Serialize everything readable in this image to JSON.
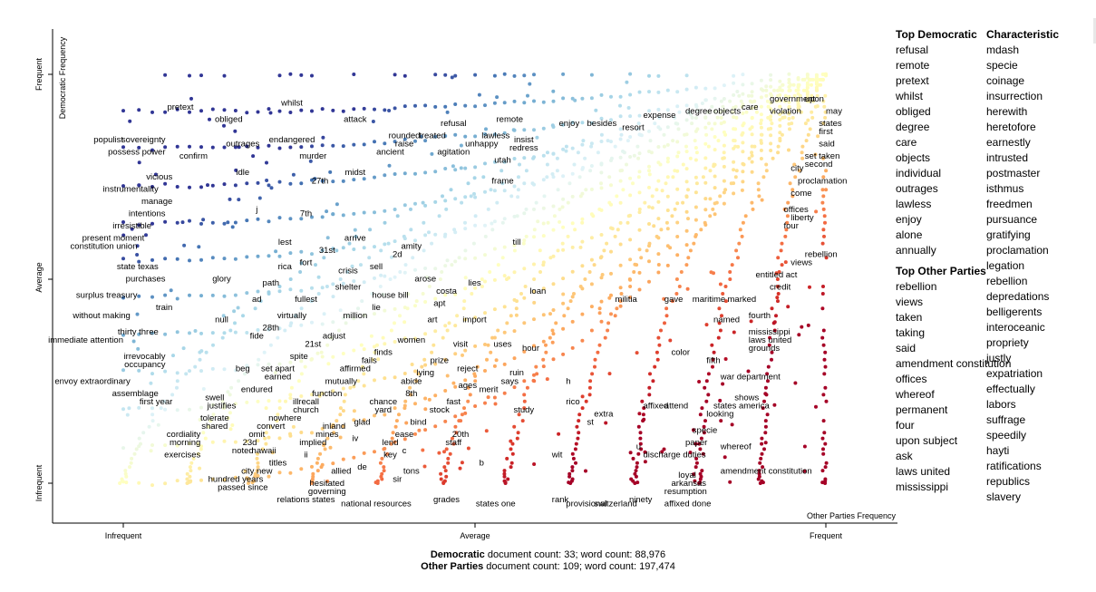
{
  "chart_data": {
    "type": "scatter",
    "title": "",
    "xlabel": "Other Parties Frequency",
    "ylabel": "Democratic Frequency",
    "x_ticks": [
      "Infrequent",
      "Average",
      "Frequent"
    ],
    "y_ticks": [
      "Infrequent",
      "Average",
      "Frequent"
    ],
    "xlim": [
      0,
      1
    ],
    "ylim": [
      0,
      1
    ],
    "color_scale": "diverging red-yellow-blue (blue = Democratic-characteristic, red = Other-Parties-characteristic)",
    "colors": {
      "democratic": "#2e4aa0",
      "neutral": "#fbf4ad",
      "other": "#b2182b"
    },
    "labels": [
      {
        "text": "pretext",
        "x": 0.1,
        "y": 0.92
      },
      {
        "text": "obliged",
        "x": 0.15,
        "y": 0.89
      },
      {
        "text": "whilst",
        "x": 0.24,
        "y": 0.93
      },
      {
        "text": "populist",
        "x": 0,
        "y": 0.84
      },
      {
        "text": "sovereignty",
        "x": 0.06,
        "y": 0.84
      },
      {
        "text": "outrages",
        "x": 0.17,
        "y": 0.83
      },
      {
        "text": "endangered",
        "x": 0.24,
        "y": 0.84
      },
      {
        "text": "attack",
        "x": 0.33,
        "y": 0.89
      },
      {
        "text": "possess power",
        "x": 0.06,
        "y": 0.81
      },
      {
        "text": "confirm",
        "x": 0.12,
        "y": 0.8
      },
      {
        "text": "murder",
        "x": 0.27,
        "y": 0.8
      },
      {
        "text": "ancient",
        "x": 0.38,
        "y": 0.81
      },
      {
        "text": "idle",
        "x": 0.17,
        "y": 0.76
      },
      {
        "text": "midst",
        "x": 0.33,
        "y": 0.76
      },
      {
        "text": "vicious",
        "x": 0.07,
        "y": 0.75
      },
      {
        "text": "27th",
        "x": 0.28,
        "y": 0.74
      },
      {
        "text": "instrumentality",
        "x": 0.05,
        "y": 0.72
      },
      {
        "text": "manage",
        "x": 0.07,
        "y": 0.69
      },
      {
        "text": "j",
        "x": 0.19,
        "y": 0.67
      },
      {
        "text": "7th",
        "x": 0.26,
        "y": 0.66
      },
      {
        "text": "intentions",
        "x": 0.06,
        "y": 0.66
      },
      {
        "text": "irresistible",
        "x": 0.04,
        "y": 0.63
      },
      {
        "text": "present moment",
        "x": 0.03,
        "y": 0.6
      },
      {
        "text": "constitution union",
        "x": 0.02,
        "y": 0.58
      },
      {
        "text": "lest",
        "x": 0.23,
        "y": 0.59
      },
      {
        "text": "31st",
        "x": 0.29,
        "y": 0.57
      },
      {
        "text": "arrive",
        "x": 0.33,
        "y": 0.6
      },
      {
        "text": "amity",
        "x": 0.41,
        "y": 0.58
      },
      {
        "text": "2d",
        "x": 0.39,
        "y": 0.56
      },
      {
        "text": "state texas",
        "x": 0.05,
        "y": 0.53
      },
      {
        "text": "rica",
        "x": 0.23,
        "y": 0.53
      },
      {
        "text": "fort",
        "x": 0.26,
        "y": 0.54
      },
      {
        "text": "crisis",
        "x": 0.32,
        "y": 0.52
      },
      {
        "text": "sell",
        "x": 0.36,
        "y": 0.53
      },
      {
        "text": "purchases",
        "x": 0.06,
        "y": 0.5
      },
      {
        "text": "glory",
        "x": 0.14,
        "y": 0.5
      },
      {
        "text": "path",
        "x": 0.21,
        "y": 0.49
      },
      {
        "text": "shelter",
        "x": 0.32,
        "y": 0.48
      },
      {
        "text": "arose",
        "x": 0.43,
        "y": 0.5
      },
      {
        "text": "lies",
        "x": 0.5,
        "y": 0.49
      },
      {
        "text": "loan",
        "x": 0.59,
        "y": 0.47
      },
      {
        "text": "surplus treasury",
        "x": 0.02,
        "y": 0.46
      },
      {
        "text": "ad",
        "x": 0.19,
        "y": 0.45
      },
      {
        "text": "fullest",
        "x": 0.26,
        "y": 0.45
      },
      {
        "text": "house bill",
        "x": 0.38,
        "y": 0.46
      },
      {
        "text": "costa",
        "x": 0.46,
        "y": 0.47
      },
      {
        "text": "apt",
        "x": 0.45,
        "y": 0.44
      },
      {
        "text": "train",
        "x": 0.07,
        "y": 0.43
      },
      {
        "text": "virtually",
        "x": 0.24,
        "y": 0.41
      },
      {
        "text": "lie",
        "x": 0.36,
        "y": 0.43
      },
      {
        "text": "million",
        "x": 0.33,
        "y": 0.41
      },
      {
        "text": "art",
        "x": 0.44,
        "y": 0.4
      },
      {
        "text": "import",
        "x": 0.5,
        "y": 0.4
      },
      {
        "text": "without making",
        "x": 0.01,
        "y": 0.41
      },
      {
        "text": "null",
        "x": 0.14,
        "y": 0.4
      },
      {
        "text": "28th",
        "x": 0.21,
        "y": 0.38
      },
      {
        "text": "fide",
        "x": 0.19,
        "y": 0.36
      },
      {
        "text": "adjust",
        "x": 0.3,
        "y": 0.36
      },
      {
        "text": "women",
        "x": 0.41,
        "y": 0.35
      },
      {
        "text": "visit",
        "x": 0.48,
        "y": 0.34
      },
      {
        "text": "uses",
        "x": 0.54,
        "y": 0.34
      },
      {
        "text": "hour",
        "x": 0.58,
        "y": 0.33
      },
      {
        "text": "thirty three",
        "x": 0.05,
        "y": 0.37
      },
      {
        "text": "immediate attention",
        "x": 0,
        "y": 0.35
      },
      {
        "text": "21st",
        "x": 0.27,
        "y": 0.34
      },
      {
        "text": "finds",
        "x": 0.37,
        "y": 0.32
      },
      {
        "text": "irrevocably",
        "x": 0.06,
        "y": 0.31
      },
      {
        "text": "spite",
        "x": 0.25,
        "y": 0.31
      },
      {
        "text": "fails",
        "x": 0.35,
        "y": 0.3
      },
      {
        "text": "prize",
        "x": 0.45,
        "y": 0.3
      },
      {
        "text": "beg",
        "x": 0.17,
        "y": 0.28
      },
      {
        "text": "occupancy",
        "x": 0.06,
        "y": 0.29
      },
      {
        "text": "set apart",
        "x": 0.22,
        "y": 0.28
      },
      {
        "text": "affirmed",
        "x": 0.33,
        "y": 0.28
      },
      {
        "text": "lying",
        "x": 0.43,
        "y": 0.27
      },
      {
        "text": "reject",
        "x": 0.49,
        "y": 0.28
      },
      {
        "text": "ruin",
        "x": 0.56,
        "y": 0.27
      },
      {
        "text": "envoy extraordinary",
        "x": 0.01,
        "y": 0.25
      },
      {
        "text": "earned",
        "x": 0.22,
        "y": 0.26
      },
      {
        "text": "mutually",
        "x": 0.31,
        "y": 0.25
      },
      {
        "text": "abide",
        "x": 0.41,
        "y": 0.25
      },
      {
        "text": "says",
        "x": 0.55,
        "y": 0.25
      },
      {
        "text": "h",
        "x": 0.63,
        "y": 0.25
      },
      {
        "text": "merit",
        "x": 0.52,
        "y": 0.23
      },
      {
        "text": "ages",
        "x": 0.49,
        "y": 0.24
      },
      {
        "text": "assemblage",
        "x": 0.05,
        "y": 0.22
      },
      {
        "text": "endured",
        "x": 0.19,
        "y": 0.23
      },
      {
        "text": "function",
        "x": 0.29,
        "y": 0.22
      },
      {
        "text": "8th",
        "x": 0.41,
        "y": 0.22
      },
      {
        "text": "swell",
        "x": 0.13,
        "y": 0.21
      },
      {
        "text": "illrecall",
        "x": 0.26,
        "y": 0.2
      },
      {
        "text": "chance",
        "x": 0.37,
        "y": 0.2
      },
      {
        "text": "fast",
        "x": 0.47,
        "y": 0.2
      },
      {
        "text": "rico",
        "x": 0.63,
        "y": 0.2
      },
      {
        "text": "first year",
        "x": 0.07,
        "y": 0.2
      },
      {
        "text": "justifies",
        "x": 0.14,
        "y": 0.19
      },
      {
        "text": "church",
        "x": 0.26,
        "y": 0.18
      },
      {
        "text": "yard",
        "x": 0.37,
        "y": 0.18
      },
      {
        "text": "stock",
        "x": 0.45,
        "y": 0.18
      },
      {
        "text": "study",
        "x": 0.57,
        "y": 0.18
      },
      {
        "text": "extra",
        "x": 0.67,
        "y": 0.17
      },
      {
        "text": "tolerate",
        "x": 0.13,
        "y": 0.16
      },
      {
        "text": "nowhere",
        "x": 0.23,
        "y": 0.16
      },
      {
        "text": "glad",
        "x": 0.34,
        "y": 0.15
      },
      {
        "text": "bind",
        "x": 0.42,
        "y": 0.15
      },
      {
        "text": "st",
        "x": 0.66,
        "y": 0.15
      },
      {
        "text": "shared",
        "x": 0.13,
        "y": 0.14
      },
      {
        "text": "convert",
        "x": 0.21,
        "y": 0.14
      },
      {
        "text": "inland",
        "x": 0.3,
        "y": 0.14
      },
      {
        "text": "cordiality",
        "x": 0.11,
        "y": 0.12
      },
      {
        "text": "omit",
        "x": 0.19,
        "y": 0.12
      },
      {
        "text": "mines",
        "x": 0.29,
        "y": 0.12
      },
      {
        "text": "iv",
        "x": 0.33,
        "y": 0.11
      },
      {
        "text": "ease",
        "x": 0.4,
        "y": 0.12
      },
      {
        "text": "20th",
        "x": 0.48,
        "y": 0.12
      },
      {
        "text": "23d",
        "x": 0.18,
        "y": 0.1
      },
      {
        "text": "implied",
        "x": 0.27,
        "y": 0.1
      },
      {
        "text": "lend",
        "x": 0.38,
        "y": 0.1
      },
      {
        "text": "staff",
        "x": 0.47,
        "y": 0.1
      },
      {
        "text": "morning",
        "x": 0.11,
        "y": 0.1
      },
      {
        "text": "noted",
        "x": 0.17,
        "y": 0.08
      },
      {
        "text": "hawaii",
        "x": 0.2,
        "y": 0.08
      },
      {
        "text": "ii",
        "x": 0.26,
        "y": 0.07
      },
      {
        "text": "c",
        "x": 0.4,
        "y": 0.08
      },
      {
        "text": "key",
        "x": 0.38,
        "y": 0.07
      },
      {
        "text": "exercises",
        "x": 0.11,
        "y": 0.07
      },
      {
        "text": "titles",
        "x": 0.22,
        "y": 0.05
      },
      {
        "text": "de",
        "x": 0.34,
        "y": 0.04
      },
      {
        "text": "allied",
        "x": 0.31,
        "y": 0.03
      },
      {
        "text": "tons",
        "x": 0.41,
        "y": 0.03
      },
      {
        "text": "b",
        "x": 0.51,
        "y": 0.05
      },
      {
        "text": "wit",
        "x": 0.61,
        "y": 0.07
      },
      {
        "text": "city new",
        "x": 0.19,
        "y": 0.03
      },
      {
        "text": "hundred years",
        "x": 0.16,
        "y": 0.01
      },
      {
        "text": "sir",
        "x": 0.39,
        "y": 0.01
      },
      {
        "text": "passed since",
        "x": 0.17,
        "y": -0.01
      },
      {
        "text": "hesitated",
        "x": 0.29,
        "y": 0.0
      },
      {
        "text": "governing",
        "x": 0.29,
        "y": -0.02
      },
      {
        "text": "relations states",
        "x": 0.26,
        "y": -0.04
      },
      {
        "text": "national resources",
        "x": 0.36,
        "y": -0.05
      },
      {
        "text": "grades",
        "x": 0.46,
        "y": -0.04
      },
      {
        "text": "states one",
        "x": 0.53,
        "y": -0.05
      },
      {
        "text": "rank",
        "x": 0.61,
        "y": -0.04
      },
      {
        "text": "provisional",
        "x": 0.63,
        "y": -0.05
      },
      {
        "text": "switzerland",
        "x": 0.67,
        "y": -0.05
      },
      {
        "text": "ninety",
        "x": 0.72,
        "y": -0.04
      },
      {
        "text": "affixed done",
        "x": 0.77,
        "y": -0.05
      },
      {
        "text": "resumption",
        "x": 0.77,
        "y": -0.02
      },
      {
        "text": "arkansas",
        "x": 0.78,
        "y": 0.0
      },
      {
        "text": "loyal",
        "x": 0.79,
        "y": 0.02
      },
      {
        "text": "amendment constitution",
        "x": 0.85,
        "y": 0.03
      },
      {
        "text": "discharge duties",
        "x": 0.74,
        "y": 0.07
      },
      {
        "text": "u",
        "x": 0.73,
        "y": 0.09
      },
      {
        "text": "paper",
        "x": 0.8,
        "y": 0.1
      },
      {
        "text": "whereof",
        "x": 0.85,
        "y": 0.09
      },
      {
        "text": "specie",
        "x": 0.81,
        "y": 0.13
      },
      {
        "text": "looking",
        "x": 0.83,
        "y": 0.17
      },
      {
        "text": "states america",
        "x": 0.84,
        "y": 0.19
      },
      {
        "text": "shows",
        "x": 0.87,
        "y": 0.21
      },
      {
        "text": "affixed",
        "x": 0.74,
        "y": 0.19
      },
      {
        "text": "attend",
        "x": 0.77,
        "y": 0.19
      },
      {
        "text": "war department",
        "x": 0.85,
        "y": 0.26
      },
      {
        "text": "fifth",
        "x": 0.83,
        "y": 0.3
      },
      {
        "text": "color",
        "x": 0.78,
        "y": 0.32
      },
      {
        "text": "grounds",
        "x": 0.89,
        "y": 0.33
      },
      {
        "text": "laws united",
        "x": 0.89,
        "y": 0.35
      },
      {
        "text": "mississippi",
        "x": 0.89,
        "y": 0.37
      },
      {
        "text": "named",
        "x": 0.84,
        "y": 0.4
      },
      {
        "text": "fourth",
        "x": 0.89,
        "y": 0.41
      },
      {
        "text": "militia",
        "x": 0.7,
        "y": 0.45
      },
      {
        "text": "gave",
        "x": 0.77,
        "y": 0.45
      },
      {
        "text": "maritime",
        "x": 0.81,
        "y": 0.45
      },
      {
        "text": "marked",
        "x": 0.86,
        "y": 0.45
      },
      {
        "text": "credit",
        "x": 0.92,
        "y": 0.48
      },
      {
        "text": "entitled act",
        "x": 0.9,
        "y": 0.51
      },
      {
        "text": "views",
        "x": 0.95,
        "y": 0.54
      },
      {
        "text": "rebellion",
        "x": 0.97,
        "y": 0.56
      },
      {
        "text": "four",
        "x": 0.94,
        "y": 0.63
      },
      {
        "text": "liberty",
        "x": 0.95,
        "y": 0.65
      },
      {
        "text": "offices",
        "x": 0.94,
        "y": 0.67
      },
      {
        "text": "come",
        "x": 0.95,
        "y": 0.71
      },
      {
        "text": "proclamation",
        "x": 0.96,
        "y": 0.74
      },
      {
        "text": "city",
        "x": 0.95,
        "y": 0.77
      },
      {
        "text": "second",
        "x": 0.97,
        "y": 0.78
      },
      {
        "text": "set taken",
        "x": 0.97,
        "y": 0.8
      },
      {
        "text": "said",
        "x": 0.99,
        "y": 0.83
      },
      {
        "text": "first",
        "x": 0.99,
        "y": 0.86
      },
      {
        "text": "states",
        "x": 0.99,
        "y": 0.88
      },
      {
        "text": "may",
        "x": 1.0,
        "y": 0.91
      },
      {
        "text": "upon",
        "x": 0.97,
        "y": 0.94
      },
      {
        "text": "government",
        "x": 0.92,
        "y": 0.94
      },
      {
        "text": "violation",
        "x": 0.92,
        "y": 0.91
      },
      {
        "text": "care",
        "x": 0.88,
        "y": 0.92
      },
      {
        "text": "objects",
        "x": 0.84,
        "y": 0.91
      },
      {
        "text": "degree",
        "x": 0.8,
        "y": 0.91
      },
      {
        "text": "expense",
        "x": 0.74,
        "y": 0.9
      },
      {
        "text": "resort",
        "x": 0.71,
        "y": 0.87
      },
      {
        "text": "besides",
        "x": 0.66,
        "y": 0.88
      },
      {
        "text": "enjoy",
        "x": 0.62,
        "y": 0.88
      },
      {
        "text": "remote",
        "x": 0.55,
        "y": 0.89
      },
      {
        "text": "refusal",
        "x": 0.47,
        "y": 0.88
      },
      {
        "text": "lawless",
        "x": 0.53,
        "y": 0.85
      },
      {
        "text": "insist",
        "x": 0.57,
        "y": 0.84
      },
      {
        "text": "unhappy",
        "x": 0.51,
        "y": 0.83
      },
      {
        "text": "redress",
        "x": 0.57,
        "y": 0.82
      },
      {
        "text": "rounded",
        "x": 0.4,
        "y": 0.85
      },
      {
        "text": "treated",
        "x": 0.44,
        "y": 0.85
      },
      {
        "text": "raise",
        "x": 0.4,
        "y": 0.83
      },
      {
        "text": "agitation",
        "x": 0.47,
        "y": 0.81
      },
      {
        "text": "utah",
        "x": 0.54,
        "y": 0.79
      },
      {
        "text": "frame",
        "x": 0.54,
        "y": 0.74
      },
      {
        "text": "till",
        "x": 0.56,
        "y": 0.59
      }
    ]
  },
  "axes": {
    "y_title": "Democratic Frequency",
    "x_title": "Other Parties Frequency",
    "x_ticks": [
      "Infrequent",
      "Average",
      "Frequent"
    ],
    "y_ticks": [
      "Infrequent",
      "Average",
      "Frequent"
    ]
  },
  "panel": {
    "top_democratic": {
      "heading": "Top Democratic",
      "items": [
        "refusal",
        "remote",
        "pretext",
        "whilst",
        "obliged",
        "degree",
        "care",
        "objects",
        "individual",
        "outrages",
        "lawless",
        "enjoy",
        "alone",
        "annually"
      ]
    },
    "top_other": {
      "heading": "Top Other Parties",
      "items": [
        "rebellion",
        "views",
        "taken",
        "taking",
        "said",
        "amendment constitution",
        "offices",
        "whereof",
        "permanent",
        "four",
        "upon subject",
        "ask",
        "laws united",
        "mississippi"
      ]
    },
    "characteristic": {
      "heading": "Characteristic",
      "items": [
        "mdash",
        "specie",
        "coinage",
        "insurrection",
        "herewith",
        "heretofore",
        "earnestly",
        "intrusted",
        "postmaster",
        "isthmus",
        "freedmen",
        "pursuance",
        "gratifying",
        "proclamation",
        "legation",
        "rebellion",
        "depredations",
        "belligerents",
        "interoceanic",
        "propriety",
        "justly",
        "expatriation",
        "effectually",
        "labors",
        "suffrage",
        "speedily",
        "hayti",
        "ratifications",
        "republics",
        "slavery"
      ]
    }
  },
  "footer": {
    "dem_name": "Democratic",
    "dem_text": " document count: 33; word count: 88,976",
    "other_name": "Other Parties",
    "other_text": " document count: 109; word count: 197,474"
  }
}
